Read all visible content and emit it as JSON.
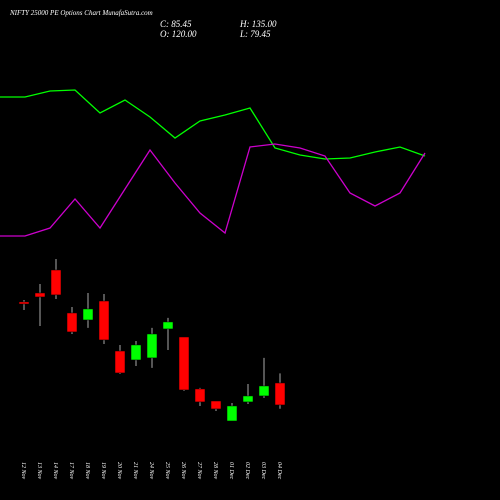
{
  "chart_data": [
    {
      "type": "candlestick",
      "title": "NIFTY 25000 PE Options Chart MunafaSutra.com",
      "stats": [
        "C: 85.45",
        "H: 135.00",
        "O: 120.00",
        "L: 79.45"
      ],
      "categories": [
        "12 Nov",
        "13 Nov",
        "14 Nov",
        "17 Nov",
        "18 Nov",
        "19 Nov",
        "20 Nov",
        "21 Nov",
        "24 Nov",
        "25 Nov",
        "26 Nov",
        "27 Nov",
        "28 Nov",
        "01 Dec",
        "02 Dec",
        "03 Dec",
        "04 Dec"
      ],
      "open": [
        247.2,
        261.3,
        297.4,
        229.9,
        218.9,
        248.7,
        170.2,
        156.1,
        159.3,
        204.8,
        192.2,
        110.6,
        91.7,
        60.3,
        90.2,
        99.6,
        120
      ],
      "high": [
        250.3,
        275.4,
        314.7,
        239.3,
        261.3,
        259.7,
        179.7,
        185.9,
        206.4,
        222.1,
        192.2,
        112.2,
        91.7,
        88.6,
        118.4,
        159.3,
        135
      ],
      "low": [
        234.6,
        209.5,
        251.9,
        196.9,
        206.4,
        181.2,
        134.1,
        146.7,
        143.6,
        171.8,
        107.4,
        83.9,
        76,
        60.3,
        87,
        96.5,
        79.45
      ],
      "close": [
        244,
        255,
        258.2,
        200.1,
        236.2,
        187.5,
        135.7,
        179.7,
        196.9,
        215.8,
        109,
        90.2,
        79.2,
        83.9,
        99.6,
        115.3,
        85.45
      ],
      "up_color": "#00ff00",
      "down_color": "#ff0000",
      "wick_color": "#aaaaaa"
    },
    {
      "type": "line",
      "series": [
        {
          "color": "#00ff00",
          "values": [
            203,
            203,
            209,
            210,
            187,
            200,
            183,
            162,
            179,
            185,
            192,
            152,
            145,
            141,
            142,
            148,
            153,
            144
          ]
        },
        {
          "color": "#cc00cc",
          "values": [
            64,
            64,
            72,
            101,
            72,
            111,
            150,
            117,
            87,
            67,
            153,
            156,
            152,
            144,
            107,
            94,
            107,
            147
          ]
        }
      ]
    }
  ]
}
